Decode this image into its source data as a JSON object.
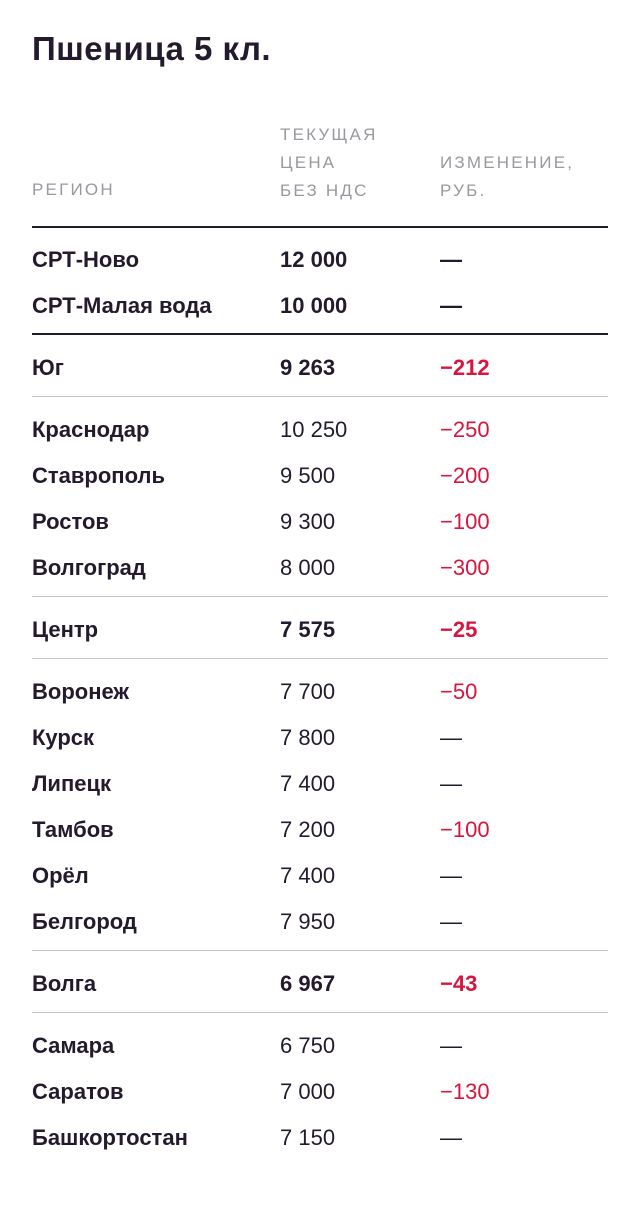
{
  "title": "Пшеница 5 кл.",
  "header": {
    "region": "РЕГИОН",
    "price_lines": [
      "ТЕКУЩАЯ",
      "ЦЕНА",
      "БЕЗ НДС"
    ],
    "change_lines": [
      "ИЗМЕНЕНИЕ,",
      "РУБ."
    ]
  },
  "rows": [
    {
      "region": "СРТ-Ново",
      "price": "12 000",
      "change": "—"
    },
    {
      "region": "СРТ-Малая вода",
      "price": "10 000",
      "change": "—"
    },
    {
      "region": "Юг",
      "price": "9 263",
      "change": "−212"
    },
    {
      "region": "Краснодар",
      "price": "10 250",
      "change": "−250"
    },
    {
      "region": "Ставрополь",
      "price": "9 500",
      "change": "−200"
    },
    {
      "region": "Ростов",
      "price": "9 300",
      "change": "−100"
    },
    {
      "region": "Волгоград",
      "price": "8 000",
      "change": "−300"
    },
    {
      "region": "Центр",
      "price": "7 575",
      "change": "−25"
    },
    {
      "region": "Воронеж",
      "price": "7 700",
      "change": "−50"
    },
    {
      "region": "Курск",
      "price": "7 800",
      "change": "—"
    },
    {
      "region": "Липецк",
      "price": "7 400",
      "change": "—"
    },
    {
      "region": "Тамбов",
      "price": "7 200",
      "change": "−100"
    },
    {
      "region": "Орёл",
      "price": "7 400",
      "change": "—"
    },
    {
      "region": "Белгород",
      "price": "7 950",
      "change": "—"
    },
    {
      "region": "Волга",
      "price": "6 967",
      "change": "−43"
    },
    {
      "region": "Самара",
      "price": "6 750",
      "change": "—"
    },
    {
      "region": "Саратов",
      "price": "7 000",
      "change": "−130"
    },
    {
      "region": "Башкортостан",
      "price": "7 150",
      "change": "—"
    }
  ],
  "colors": {
    "text": "#231a2e",
    "negative": "#d6163f",
    "header": "#9b979f",
    "rule": "#c6c3c9"
  }
}
